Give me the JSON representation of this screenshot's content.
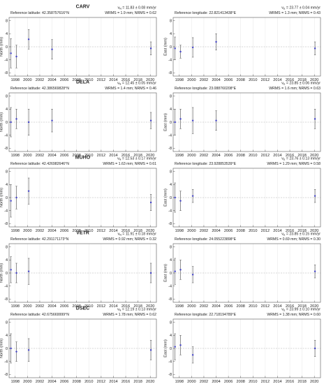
{
  "figure": {
    "x_ticks": [
      1998,
      2000,
      2002,
      2004,
      2006,
      2008,
      2010,
      2012,
      2014,
      2016,
      2018,
      2020
    ]
  },
  "colors": {
    "point": "#4040c8",
    "errorbar": "#606060",
    "zero_line": "#b0b0b0",
    "grid": "#e6e6e6"
  },
  "stations": [
    {
      "name": "CARV",
      "north": {
        "ref": "Reference latitude: 42.358757616°N",
        "velocity": "vN = 11.83 ± 0.08 mm/yr",
        "stats": "WRMS = 1.9 mm; NRMS = 0.62"
      },
      "east": {
        "ref": "Reference longitude: 22.821413438°E",
        "velocity": "vE = 23.77 ± 0.04 mm/yr",
        "stats": "WRMS = 1.3 mm; NRMS = 0.43"
      }
    },
    {
      "name": "DELA",
      "north": {
        "ref": "Reference latitude: 42.386569828°N",
        "velocity": "vN = 12.45 ± 0.05 mm/yr",
        "stats": "WRMS = 1.4 mm; NRMS = 0.46"
      },
      "east": {
        "ref": "Reference longitude: 23.088760208°E",
        "velocity": "vE = 23.85 ± 0.06 mm/yr",
        "stats": "WRMS = 1.6 mm; NRMS = 0.63"
      }
    },
    {
      "name": "MUHO",
      "north": {
        "ref": "Reference latitude: 42.426982646°N",
        "velocity": "vN = 12.53 ± 0.17 mm/yr",
        "stats": "WRMS = 1.63 mm; NRMS = 0.61"
      },
      "east": {
        "ref": "Reference longitude: 23.928853539°E",
        "velocity": "vE = 23.76 ± 0.13 mm/yr",
        "stats": "WRMS = 1.29 mm; NRMS = 0.58"
      }
    },
    {
      "name": "VETR",
      "north": {
        "ref": "Reference latitude: 42.291171173°N",
        "velocity": "vN = 11.91 ± 0.18 mm/yr",
        "stats": "WRMS = 0.92 mm; NRMS = 0.32"
      },
      "east": {
        "ref": "Reference longitude: 24.055223898°E",
        "velocity": "vE = 23.85 ± 0.15 mm/yr",
        "stats": "WRMS = 0.69 mm; NRMS = 0.30"
      }
    },
    {
      "name": "DSEC",
      "north": {
        "ref": "Reference latitude: 42.675669999°N",
        "velocity": "vN = 12.19 ± 0.13 mm/yr",
        "stats": "WRMS = 1.78 mm; NRMS = 0.62"
      },
      "east": {
        "ref": "Reference longitude: 22.718194789°E",
        "velocity": "vE = 23.99 ± 0.10 mm/yr",
        "stats": "WRMS = 1.38 mm; NRMS = 0.60"
      }
    }
  ],
  "chart_data": [
    {
      "type": "scatter",
      "station": "CARV",
      "component": "north",
      "ylabel": "North (mm)",
      "xlim": [
        1997,
        2021
      ],
      "ylim": [
        -9,
        9
      ],
      "y_ticks": [
        -8,
        -4,
        0,
        4,
        8
      ],
      "grid": true,
      "points": [
        {
          "x": 1997.3,
          "y": -2.0,
          "err": 4.5
        },
        {
          "x": 1998.2,
          "y": -3.0,
          "err": 3.5
        },
        {
          "x": 2000.2,
          "y": 2.3,
          "err": 3.0
        },
        {
          "x": 2004.0,
          "y": -0.8,
          "err": 3.0
        },
        {
          "x": 2020.1,
          "y": -0.5,
          "err": 2.0
        }
      ]
    },
    {
      "type": "scatter",
      "station": "CARV",
      "component": "east",
      "ylabel": "East (mm)",
      "xlim": [
        1997,
        2021
      ],
      "ylim": [
        -9,
        9
      ],
      "y_ticks": [
        -8,
        -4,
        0,
        4,
        8
      ],
      "grid": true,
      "points": [
        {
          "x": 1997.3,
          "y": -0.5,
          "err": 3.5
        },
        {
          "x": 1998.2,
          "y": -1.5,
          "err": 2.0
        },
        {
          "x": 2000.2,
          "y": -0.2,
          "err": 3.0
        },
        {
          "x": 2004.0,
          "y": 1.5,
          "err": 2.5
        },
        {
          "x": 2020.1,
          "y": -0.5,
          "err": 2.0
        }
      ]
    },
    {
      "type": "scatter",
      "station": "DELA",
      "component": "north",
      "ylabel": "North (mm)",
      "xlim": [
        1997,
        2021
      ],
      "ylim": [
        -9,
        9
      ],
      "y_ticks": [
        -8,
        -4,
        0,
        4,
        8
      ],
      "grid": true,
      "points": [
        {
          "x": 1997.3,
          "y": 0.0,
          "err": 4.5
        },
        {
          "x": 1998.2,
          "y": 1.0,
          "err": 3.0
        },
        {
          "x": 2000.2,
          "y": 0.0,
          "err": 4.0
        },
        {
          "x": 2004.0,
          "y": 0.5,
          "err": 3.5
        },
        {
          "x": 2020.1,
          "y": 0.5,
          "err": 2.5
        }
      ]
    },
    {
      "type": "scatter",
      "station": "DELA",
      "component": "east",
      "ylabel": "East (mm)",
      "xlim": [
        1997,
        2021
      ],
      "ylim": [
        -9,
        9
      ],
      "y_ticks": [
        -8,
        -4,
        0,
        4,
        8
      ],
      "grid": true,
      "points": [
        {
          "x": 1997.3,
          "y": 0.0,
          "err": 4.0
        },
        {
          "x": 1998.2,
          "y": 1.0,
          "err": 3.0
        },
        {
          "x": 2000.2,
          "y": 0.5,
          "err": 4.0
        },
        {
          "x": 2004.0,
          "y": 0.5,
          "err": 3.0
        },
        {
          "x": 2020.1,
          "y": 1.0,
          "err": 3.0
        }
      ]
    },
    {
      "type": "scatter",
      "station": "MUHO",
      "component": "north",
      "ylabel": "North (mm)",
      "xlim": [
        1997,
        2021
      ],
      "ylim": [
        -9,
        9
      ],
      "y_ticks": [
        -8,
        -4,
        0,
        4,
        8
      ],
      "grid": true,
      "points": [
        {
          "x": 1997.3,
          "y": -1.0,
          "err": 5.0
        },
        {
          "x": 1998.2,
          "y": 0.0,
          "err": 3.5
        },
        {
          "x": 2000.2,
          "y": 2.0,
          "err": 4.0
        },
        {
          "x": 2020.1,
          "y": -1.5,
          "err": 2.5
        }
      ]
    },
    {
      "type": "scatter",
      "station": "MUHO",
      "component": "east",
      "ylabel": "East (mm)",
      "xlim": [
        1997,
        2021
      ],
      "ylim": [
        -9,
        9
      ],
      "y_ticks": [
        -8,
        -4,
        0,
        4,
        8
      ],
      "grid": true,
      "points": [
        {
          "x": 1997.3,
          "y": 0.0,
          "err": 4.5
        },
        {
          "x": 1998.2,
          "y": -1.0,
          "err": 3.0
        },
        {
          "x": 2000.2,
          "y": 0.5,
          "err": 2.0
        },
        {
          "x": 2020.1,
          "y": 0.5,
          "err": 2.0
        }
      ]
    },
    {
      "type": "scatter",
      "station": "VETR",
      "component": "north",
      "ylabel": "North (mm)",
      "xlim": [
        1997,
        2021
      ],
      "ylim": [
        -9,
        9
      ],
      "y_ticks": [
        -8,
        -4,
        0,
        4,
        8
      ],
      "grid": true,
      "points": [
        {
          "x": 1997.3,
          "y": 1.0,
          "err": 4.0
        },
        {
          "x": 1998.2,
          "y": 0.0,
          "err": 3.0
        },
        {
          "x": 2000.2,
          "y": 0.5,
          "err": 4.0
        },
        {
          "x": 2020.1,
          "y": 0.0,
          "err": 3.0
        }
      ]
    },
    {
      "type": "scatter",
      "station": "VETR",
      "component": "east",
      "ylabel": "East (mm)",
      "xlim": [
        1997,
        2021
      ],
      "ylim": [
        -9,
        9
      ],
      "y_ticks": [
        -8,
        -4,
        0,
        4,
        8
      ],
      "grid": true,
      "points": [
        {
          "x": 1997.3,
          "y": 0.5,
          "err": 4.0
        },
        {
          "x": 1998.2,
          "y": 1.0,
          "err": 3.0
        },
        {
          "x": 2000.2,
          "y": -0.5,
          "err": 2.5
        },
        {
          "x": 2020.1,
          "y": 0.5,
          "err": 2.0
        }
      ]
    },
    {
      "type": "scatter",
      "station": "DSEC",
      "component": "north",
      "ylabel": "North (mm)",
      "xlim": [
        1997,
        2021
      ],
      "ylim": [
        -9,
        9
      ],
      "y_ticks": [
        -8,
        -4,
        0,
        4,
        8
      ],
      "grid": true,
      "points": [
        {
          "x": 1997.3,
          "y": 0.0,
          "err": 4.5
        },
        {
          "x": 1998.2,
          "y": -1.0,
          "err": 3.0
        },
        {
          "x": 2000.2,
          "y": -0.5,
          "err": 3.5
        },
        {
          "x": 2020.1,
          "y": -0.5,
          "err": 3.0
        }
      ]
    },
    {
      "type": "scatter",
      "station": "DSEC",
      "component": "east",
      "ylabel": "East (mm)",
      "xlim": [
        1997,
        2021
      ],
      "ylim": [
        -9,
        9
      ],
      "y_ticks": [
        -8,
        -4,
        0,
        4,
        8
      ],
      "grid": true,
      "points": [
        {
          "x": 1997.3,
          "y": 0.5,
          "err": 4.0
        },
        {
          "x": 1998.2,
          "y": 1.0,
          "err": 3.0
        },
        {
          "x": 2000.2,
          "y": -2.0,
          "err": 2.5
        },
        {
          "x": 2020.1,
          "y": 0.0,
          "err": 2.5
        }
      ]
    }
  ]
}
